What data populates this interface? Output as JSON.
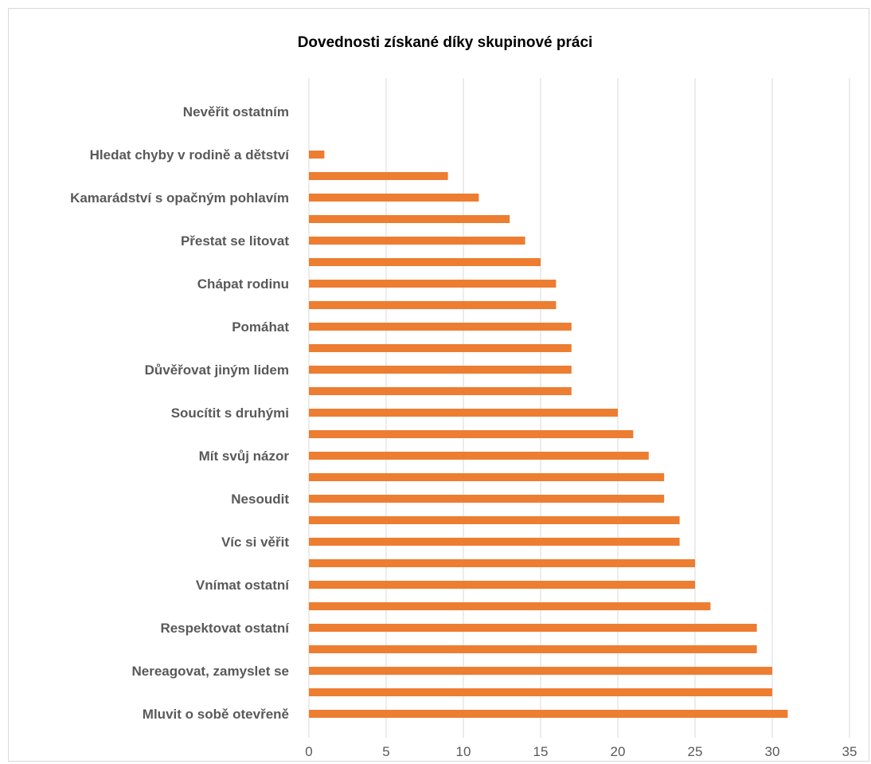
{
  "chart_data": {
    "type": "bar",
    "orientation": "horizontal",
    "title": "Dovednosti získané díky skupinové práci",
    "xlabel": "",
    "ylabel": "",
    "xlim": [
      0,
      35
    ],
    "x_ticks": [
      0,
      5,
      10,
      15,
      20,
      25,
      30,
      35
    ],
    "grid": true,
    "legend": "none",
    "bar_color": "#ED7D31",
    "categories": [
      "Mluvit o sobě otevřeně",
      "",
      "Nereagovat, zamyslet se",
      "",
      "Respektovat ostatní",
      "",
      "Vnímat ostatní",
      "",
      "Víc si věřit",
      "",
      "Nesoudit",
      "",
      "Mít svůj názor",
      "",
      "Soucítit s druhými",
      "",
      "Důvěřovat jiným lidem",
      "",
      "Pomáhat",
      "",
      "Chápat rodinu",
      "",
      "Přestat se litovat",
      "",
      "Kamarádství s opačným pohlavím",
      "",
      "Hledat chyby v rodině a dětství",
      "",
      "Nevěřit ostatním"
    ],
    "values": [
      31,
      30,
      30,
      29,
      29,
      26,
      25,
      25,
      24,
      24,
      23,
      23,
      22,
      21,
      20,
      17,
      17,
      17,
      17,
      16,
      16,
      15,
      14,
      13,
      11,
      9,
      1,
      0,
      0
    ]
  }
}
